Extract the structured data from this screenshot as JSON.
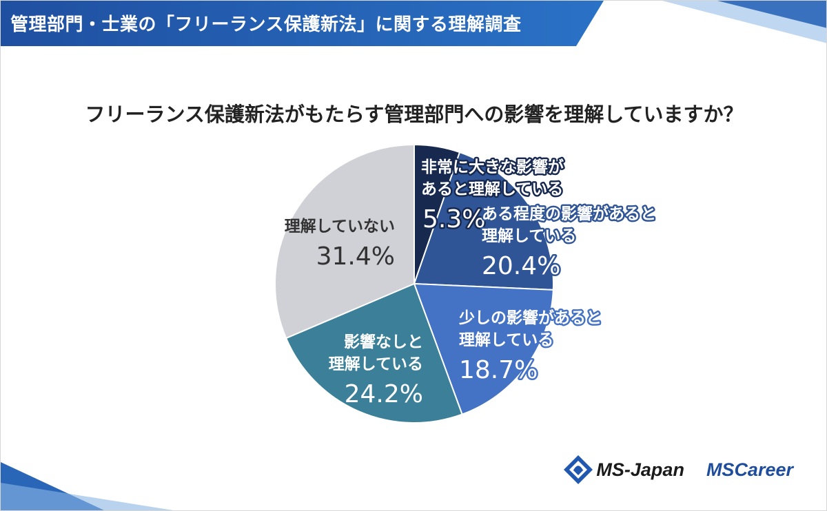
{
  "banner": {
    "title": "管理部門・士業の「フリーランス保護新法」に関する理解調査"
  },
  "question": "フリーランス保護新法がもたらす管理部門への影響を理解していますか？",
  "chart_data": {
    "type": "pie",
    "title": "フリーランス保護新法がもたらす管理部門への影響を理解していますか？",
    "slices": [
      {
        "label_lines": [
          "非常に大きな影響が",
          "あると理解している"
        ],
        "value": 5.3,
        "value_label": "5.3%",
        "color": "#17294f",
        "label_color": "#ffffff",
        "outline": "#17294f"
      },
      {
        "label_lines": [
          "ある程度の影響があると",
          "理解している"
        ],
        "value": 20.4,
        "value_label": "20.4%",
        "color": "#2f5597",
        "label_color": "#ffffff",
        "outline": "#2f5597"
      },
      {
        "label_lines": [
          "少しの影響があると",
          "理解している"
        ],
        "value": 18.7,
        "value_label": "18.7%",
        "color": "#4472c4",
        "label_color": "#ffffff",
        "outline": "#4472c4"
      },
      {
        "label_lines": [
          "影響なしと",
          "理解している"
        ],
        "value": 24.2,
        "value_label": "24.2%",
        "color": "#3b8098",
        "label_color": "#ffffff",
        "outline": "none"
      },
      {
        "label_lines": [
          "理解していない"
        ],
        "value": 31.4,
        "value_label": "31.4%",
        "color": "#d0d1d6",
        "label_color": "#333333",
        "outline": "none"
      }
    ]
  },
  "logos": {
    "ms_japan": "MS-Japan",
    "ms_career": "MSCareer"
  }
}
